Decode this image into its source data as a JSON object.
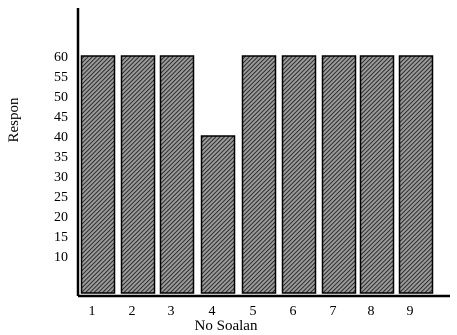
{
  "chart_data": {
    "type": "bar",
    "xlabel": "No Soalan",
    "ylabel": "Respon",
    "categories": [
      "1",
      "2",
      "3",
      "4",
      "5",
      "6",
      "7",
      "8",
      "9"
    ],
    "values": [
      60,
      60,
      60,
      40,
      60,
      60,
      60,
      60,
      60
    ],
    "yticks": [
      "10",
      "15",
      "20",
      "25",
      "30",
      "35",
      "40",
      "45",
      "50",
      "55",
      "60"
    ],
    "bar_fill": "#3a3a3a",
    "bar_pattern": "diagonal-hatch"
  }
}
